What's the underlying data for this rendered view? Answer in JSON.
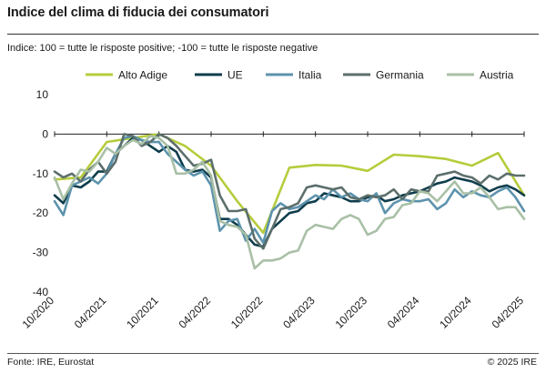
{
  "header": {
    "title": "Indice del clima di fiducia dei consumatori",
    "subtitle": "Indice: 100 = tutte le risposte positive; -100 =  tutte le risposte negative"
  },
  "footer": {
    "source": "Fonte: IRE, Eurostat",
    "copyright": "©  2025 IRE"
  },
  "chart_data": {
    "type": "line",
    "title": "Indice del clima di fiducia dei consumatori",
    "ylim": [
      -40,
      10
    ],
    "yticks": [
      -40,
      -30,
      -20,
      -10,
      0,
      10
    ],
    "xticks": [
      {
        "label": "10/2020",
        "month": 0
      },
      {
        "label": "04/2021",
        "month": 6
      },
      {
        "label": "10/2021",
        "month": 12
      },
      {
        "label": "04/2022",
        "month": 18
      },
      {
        "label": "10/2022",
        "month": 24
      },
      {
        "label": "04/2023",
        "month": 30
      },
      {
        "label": "10/2023",
        "month": 36
      },
      {
        "label": "04/2024",
        "month": 42
      },
      {
        "label": "10/2024",
        "month": 48
      },
      {
        "label": "04/2025",
        "month": 54
      }
    ],
    "grid": false,
    "legend_position": "top",
    "series": [
      {
        "name": "Alto Adige",
        "color": "#b6cc3c",
        "width": 2.6,
        "months": [
          0,
          3,
          6,
          9,
          12,
          15,
          18,
          21,
          24,
          27,
          30,
          33,
          36,
          39,
          42,
          45,
          48,
          51,
          54
        ],
        "values": [
          -11.5,
          -11,
          -2,
          -1,
          0,
          -3,
          -8,
          -17,
          -25,
          -8.5,
          -7.8,
          -8,
          -9.3,
          -5.2,
          -5.6,
          -6.3,
          -8,
          -4.8,
          -15.5
        ]
      },
      {
        "name": "UE",
        "color": "#0f3d4c",
        "width": 2.6,
        "months": [
          0,
          1,
          2,
          3,
          4,
          5,
          6,
          7,
          8,
          9,
          10,
          11,
          12,
          13,
          14,
          15,
          16,
          17,
          18,
          19,
          20,
          21,
          22,
          23,
          24,
          25,
          26,
          27,
          28,
          29,
          30,
          31,
          32,
          33,
          34,
          35,
          36,
          37,
          38,
          39,
          40,
          41,
          42,
          43,
          44,
          45,
          46,
          47,
          48,
          49,
          50,
          51,
          52,
          53,
          54
        ],
        "values": [
          -15.5,
          -17.5,
          -13,
          -13.5,
          -12,
          -9.5,
          -9.5,
          -5,
          -3,
          -1,
          -1.5,
          -3,
          -4.5,
          -3,
          -4.5,
          -9,
          -9.5,
          -9,
          -11,
          -21.5,
          -21.5,
          -23,
          -25.5,
          -28,
          -28.5,
          -24,
          -22,
          -20,
          -19.5,
          -17.5,
          -17,
          -15,
          -15.5,
          -16,
          -17,
          -17,
          -16,
          -15.5,
          -17,
          -16.5,
          -15.5,
          -15,
          -14.5,
          -13.5,
          -12.5,
          -12,
          -11,
          -11.5,
          -12,
          -13,
          -14.5,
          -13.5,
          -13,
          -14,
          -15.5
        ]
      },
      {
        "name": "Italia",
        "color": "#5d93ad",
        "width": 2.6,
        "months": [
          0,
          1,
          2,
          3,
          4,
          5,
          6,
          7,
          8,
          9,
          10,
          11,
          12,
          13,
          14,
          15,
          16,
          17,
          18,
          19,
          20,
          21,
          22,
          23,
          24,
          25,
          26,
          27,
          28,
          29,
          30,
          31,
          32,
          33,
          34,
          35,
          36,
          37,
          38,
          39,
          40,
          41,
          42,
          43,
          44,
          45,
          46,
          47,
          48,
          49,
          50,
          51,
          52,
          53,
          54
        ],
        "values": [
          -17,
          -20.5,
          -13,
          -12,
          -11,
          -12.5,
          -10,
          -5,
          -1,
          -0.5,
          -1.5,
          -2,
          -2,
          -5,
          -7,
          -9,
          -10.5,
          -9.5,
          -13,
          -24.5,
          -22,
          -21.5,
          -27,
          -24,
          -27.5,
          -19.5,
          -17.5,
          -19,
          -18.5,
          -17,
          -15.5,
          -16.5,
          -14,
          -16,
          -15,
          -16.5,
          -17,
          -15,
          -20,
          -17.5,
          -16.5,
          -17,
          -17,
          -16.5,
          -19,
          -17.5,
          -14,
          -16,
          -14.5,
          -15.5,
          -16,
          -14.5,
          -13.5,
          -16,
          -19.5
        ]
      },
      {
        "name": "Germania",
        "color": "#5c6f6c",
        "width": 2.6,
        "months": [
          0,
          1,
          2,
          3,
          4,
          5,
          6,
          7,
          8,
          9,
          10,
          11,
          12,
          13,
          14,
          15,
          16,
          17,
          18,
          19,
          20,
          21,
          22,
          23,
          24,
          25,
          26,
          27,
          28,
          29,
          30,
          31,
          32,
          33,
          34,
          35,
          36,
          37,
          38,
          39,
          40,
          41,
          42,
          43,
          44,
          45,
          46,
          47,
          48,
          49,
          50,
          51,
          52,
          53,
          54
        ],
        "values": [
          -9.5,
          -11,
          -10,
          -12,
          -9,
          -7,
          -10,
          -7,
          0,
          -0.5,
          -3,
          -2,
          0,
          -1,
          -3,
          -5.5,
          -8,
          -7.5,
          -6.5,
          -15.5,
          -19.5,
          -19.5,
          -19,
          -26.5,
          -29,
          -24,
          -19,
          -18.5,
          -17.5,
          -13.5,
          -13,
          -13.5,
          -14,
          -13.5,
          -16,
          -16.5,
          -15.5,
          -16,
          -15.5,
          -14,
          -16.5,
          -14,
          -14.5,
          -14.5,
          -10.5,
          -10,
          -9.5,
          -10.5,
          -11,
          -12.5,
          -10.5,
          -11.5,
          -10,
          -10.5,
          -10.5
        ]
      },
      {
        "name": "Austria",
        "color": "#a9c0a6",
        "width": 2.6,
        "months": [
          0,
          1,
          2,
          3,
          4,
          5,
          6,
          7,
          8,
          9,
          10,
          11,
          12,
          13,
          14,
          15,
          16,
          17,
          18,
          19,
          20,
          21,
          22,
          23,
          24,
          25,
          26,
          27,
          28,
          29,
          30,
          31,
          32,
          33,
          34,
          35,
          36,
          37,
          38,
          39,
          40,
          41,
          42,
          43,
          44,
          45,
          46,
          47,
          48,
          49,
          50,
          51,
          52,
          53,
          54
        ],
        "values": [
          -11,
          -16.5,
          -12.5,
          -9,
          -9.5,
          -7,
          -3.5,
          -5,
          -3,
          -1.5,
          -2.5,
          -0.5,
          -1,
          -3,
          -10,
          -10,
          -9,
          -7,
          -10.5,
          -22,
          -23,
          -23.5,
          -25.5,
          -34,
          -32,
          -32,
          -31.5,
          -30,
          -29.5,
          -24.5,
          -23,
          -23.5,
          -24,
          -21.5,
          -20.5,
          -21.5,
          -25.5,
          -24.5,
          -21.5,
          -21,
          -18,
          -17.5,
          -14.5,
          -15,
          -17,
          -14.5,
          -12,
          -15,
          -15,
          -13.5,
          -16,
          -19,
          -18.5,
          -18.5,
          -21.5
        ]
      }
    ]
  }
}
